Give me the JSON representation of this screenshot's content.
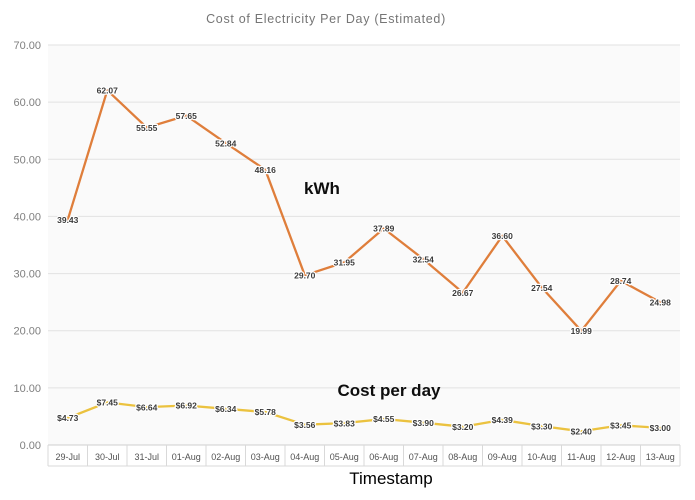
{
  "chart_data": {
    "type": "line",
    "title": "Cost of Electricity Per Day (Estimated)",
    "xlabel": "Timestamp",
    "ylabel": "",
    "ylim": [
      0,
      70
    ],
    "ytick_step": 10,
    "ytick_labels": [
      "0.00",
      "10.00",
      "20.00",
      "30.00",
      "40.00",
      "50.00",
      "60.00",
      "70.00"
    ],
    "grid": true,
    "legend_position": "none",
    "categories": [
      "29-Jul",
      "30-Jul",
      "31-Jul",
      "01-Aug",
      "02-Aug",
      "03-Aug",
      "04-Aug",
      "05-Aug",
      "06-Aug",
      "07-Aug",
      "08-Aug",
      "09-Aug",
      "10-Aug",
      "11-Aug",
      "12-Aug",
      "13-Aug"
    ],
    "series": [
      {
        "name": "kWh",
        "color": "#DF7E3B",
        "label_prefix": "",
        "values": [
          39.43,
          62.07,
          55.55,
          57.65,
          52.84,
          48.16,
          29.7,
          31.95,
          37.89,
          32.54,
          26.67,
          36.6,
          27.54,
          19.99,
          28.74,
          24.98
        ]
      },
      {
        "name": "Cost per day",
        "color": "#EBC23F",
        "label_prefix": "$",
        "values": [
          4.73,
          7.45,
          6.64,
          6.92,
          6.34,
          5.78,
          3.56,
          3.83,
          4.55,
          3.9,
          3.2,
          4.39,
          3.3,
          2.4,
          3.45,
          3.0
        ]
      }
    ],
    "colors": {
      "plot_bg": "#fafafa",
      "gridline": "#e2e2e2",
      "axis_line": "#cfcfcf",
      "cell_border": "#d9d9d9",
      "y_tick_label": "#7f7f7f",
      "x_tick_label": "#525252",
      "data_label": "#3b3b3b",
      "title": "#757575"
    }
  }
}
